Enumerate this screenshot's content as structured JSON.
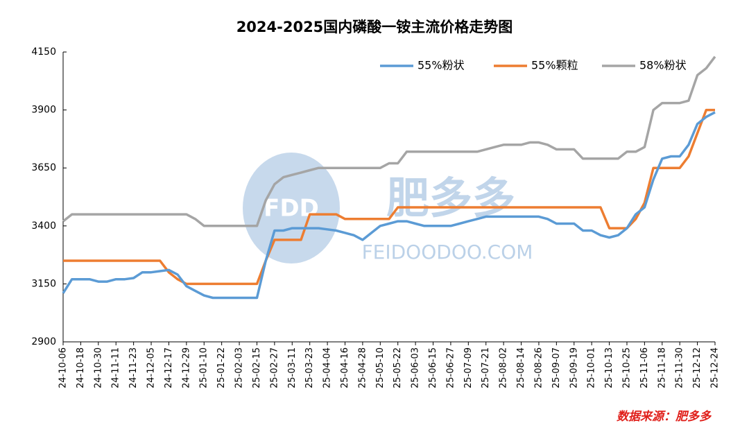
{
  "chart_data": {
    "type": "line",
    "title": "2024-2025国内磷酸一铵主流价格走势图",
    "source": "数据来源：肥多多",
    "watermark": {
      "logo": "FDD",
      "name": "肥多多",
      "site": "FEIDOODOO.COM"
    },
    "categories": [
      "24-10-06",
      null,
      "24-10-18",
      null,
      "24-10-30",
      null,
      "24-11-11",
      null,
      "24-11-23",
      null,
      "24-12-05",
      null,
      "24-12-17",
      null,
      "24-12-29",
      null,
      "25-01-10",
      null,
      "25-01-22",
      null,
      "25-02-03",
      null,
      "25-02-15",
      null,
      "25-02-27",
      null,
      "25-03-11",
      null,
      "25-03-23",
      null,
      "25-04-04",
      null,
      "25-04-16",
      null,
      "25-04-28",
      null,
      "25-05-10",
      null,
      "25-05-22",
      null,
      "25-06-03",
      null,
      "25-06-15",
      null,
      "25-06-27",
      null,
      "25-07-09",
      null,
      "25-07-21",
      null,
      "25-08-02",
      null,
      "25-08-14",
      null,
      "25-08-26",
      null,
      "25-09-07",
      null,
      "25-09-19",
      null,
      "25-10-01",
      null,
      "25-10-13",
      null,
      "25-10-25",
      null,
      "25-11-06",
      null,
      "25-11-18",
      null,
      "25-11-30",
      null,
      "25-12-12",
      null,
      "25-12-24"
    ],
    "series": [
      {
        "name": "55%粉状",
        "color": "#5b9bd5",
        "values": [
          3110,
          3170,
          3170,
          3170,
          3160,
          3160,
          3170,
          3170,
          3175,
          3200,
          3200,
          3205,
          3210,
          3190,
          3140,
          3120,
          3100,
          3090,
          3090,
          3090,
          3090,
          3090,
          3090,
          3250,
          3380,
          3380,
          3390,
          3390,
          3390,
          3390,
          3385,
          3380,
          3370,
          3360,
          3340,
          3370,
          3400,
          3410,
          3420,
          3420,
          3410,
          3400,
          3400,
          3400,
          3400,
          3410,
          3420,
          3430,
          3440,
          3440,
          3440,
          3440,
          3440,
          3440,
          3440,
          3430,
          3410,
          3410,
          3410,
          3380,
          3380,
          3360,
          3350,
          3360,
          3390,
          3450,
          3480,
          3600,
          3690,
          3700,
          3700,
          3750,
          3840,
          3870,
          3890
        ]
      },
      {
        "name": "55%颗粒",
        "color": "#ed7d31",
        "values": [
          3250,
          3250,
          3250,
          3250,
          3250,
          3250,
          3250,
          3250,
          3250,
          3250,
          3250,
          3250,
          3200,
          3170,
          3150,
          3150,
          3150,
          3150,
          3150,
          3150,
          3150,
          3150,
          3150,
          3250,
          3340,
          3340,
          3340,
          3340,
          3450,
          3450,
          3450,
          3450,
          3430,
          3430,
          3430,
          3430,
          3430,
          3430,
          3480,
          3480,
          3480,
          3480,
          3480,
          3480,
          3480,
          3480,
          3480,
          3480,
          3480,
          3480,
          3480,
          3480,
          3480,
          3480,
          3480,
          3480,
          3480,
          3480,
          3480,
          3480,
          3480,
          3480,
          3390,
          3390,
          3390,
          3430,
          3500,
          3650,
          3650,
          3650,
          3650,
          3700,
          3800,
          3900,
          3900
        ]
      },
      {
        "name": "58%粉状",
        "color": "#a5a5a5",
        "values": [
          3420,
          3450,
          3450,
          3450,
          3450,
          3450,
          3450,
          3450,
          3450,
          3450,
          3450,
          3450,
          3450,
          3450,
          3450,
          3430,
          3400,
          3400,
          3400,
          3400,
          3400,
          3400,
          3400,
          3510,
          3580,
          3610,
          3620,
          3630,
          3640,
          3650,
          3650,
          3650,
          3650,
          3650,
          3650,
          3650,
          3650,
          3670,
          3670,
          3720,
          3720,
          3720,
          3720,
          3720,
          3720,
          3720,
          3720,
          3720,
          3730,
          3740,
          3750,
          3750,
          3750,
          3760,
          3760,
          3750,
          3730,
          3730,
          3730,
          3690,
          3690,
          3690,
          3690,
          3690,
          3720,
          3720,
          3740,
          3900,
          3930,
          3930,
          3930,
          3940,
          4050,
          4080,
          4130
        ]
      }
    ],
    "ylim": [
      2900,
      4150
    ],
    "yticks": [
      2900,
      3150,
      3400,
      3650,
      3900,
      4150
    ],
    "grid": false,
    "legend": "top-right"
  }
}
